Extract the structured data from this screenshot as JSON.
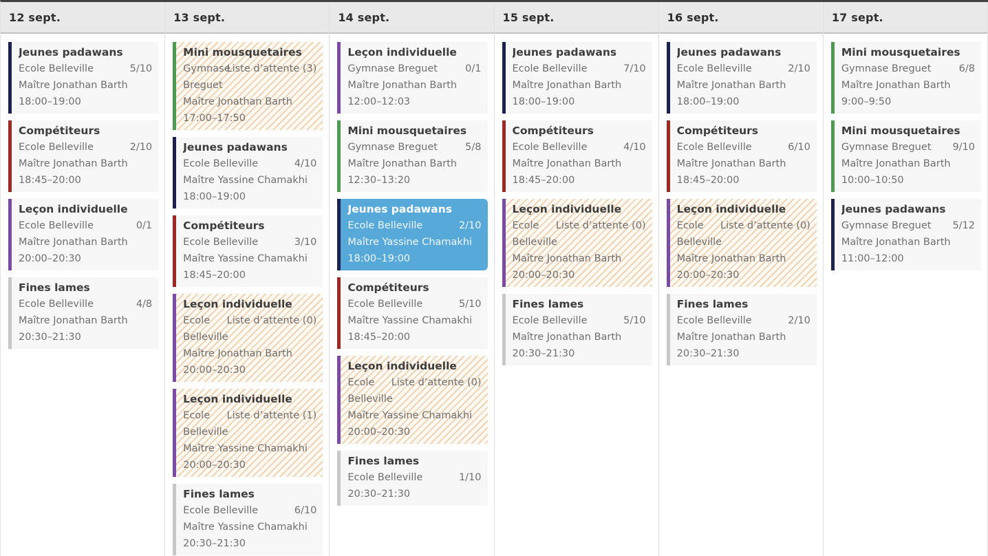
{
  "legend_colors": {
    "jeunes-padawans": "#1d2150",
    "competiteurs": "#9d2a22",
    "lecon-individuelle": "#7a4aa5",
    "mini-mousquetaires": "#4c9b50",
    "fines-lames": "#c7c7c7",
    "selected_event_bg": "#57a9da",
    "waitlist_stripe": "#f1d3b5"
  },
  "calendar": {
    "days": [
      {
        "label": "12 sept.",
        "events": [
          {
            "title": "Jeunes padawans",
            "location": "Ecole Belleville",
            "capacity": "5/10",
            "instructor": "Maître Jonathan Barth",
            "time": "18:00–19:00",
            "category": "jeunes-padawans",
            "waitlist": false,
            "selected": false
          },
          {
            "title": "Compétiteurs",
            "location": "Ecole Belleville",
            "capacity": "2/10",
            "instructor": "Maître Jonathan Barth",
            "time": "18:45–20:00",
            "category": "competiteurs",
            "waitlist": false,
            "selected": false
          },
          {
            "title": "Leçon individuelle",
            "location": "Ecole Belleville",
            "capacity": "0/1",
            "instructor": "Maître Jonathan Barth",
            "time": "20:00–20:30",
            "category": "lecon-individuelle",
            "waitlist": false,
            "selected": false
          },
          {
            "title": "Fines lames",
            "location": "Ecole Belleville",
            "capacity": "4/8",
            "instructor": "Maître Jonathan Barth",
            "time": "20:30–21:30",
            "category": "fines-lames",
            "waitlist": false,
            "selected": false
          }
        ]
      },
      {
        "label": "13 sept.",
        "events": [
          {
            "title": "Mini mousquetaires",
            "location": "Gymnase Breguet",
            "capacity": "Liste d’attente (3)",
            "instructor": "Maître Jonathan Barth",
            "time": "17:00–17:50",
            "category": "mini-mousquetaires",
            "waitlist": true,
            "selected": false
          },
          {
            "title": "Jeunes padawans",
            "location": "Ecole Belleville",
            "capacity": "4/10",
            "instructor": "Maître Yassine Chamakhi",
            "time": "18:00–19:00",
            "category": "jeunes-padawans",
            "waitlist": false,
            "selected": false
          },
          {
            "title": "Compétiteurs",
            "location": "Ecole Belleville",
            "capacity": "3/10",
            "instructor": "Maître Yassine Chamakhi",
            "time": "18:45–20:00",
            "category": "competiteurs",
            "waitlist": false,
            "selected": false
          },
          {
            "title": "Leçon individuelle",
            "location": "Ecole Belleville",
            "capacity": "Liste d’attente (0)",
            "instructor": "Maître Jonathan Barth",
            "time": "20:00–20:30",
            "category": "lecon-individuelle",
            "waitlist": true,
            "selected": false
          },
          {
            "title": "Leçon individuelle",
            "location": "Ecole Belleville",
            "capacity": "Liste d’attente (1)",
            "instructor": "Maître Yassine Chamakhi",
            "time": "20:00–20:30",
            "category": "lecon-individuelle",
            "waitlist": true,
            "selected": false
          },
          {
            "title": "Fines lames",
            "location": "Ecole Belleville",
            "capacity": "6/10",
            "instructor": "Maître Yassine Chamakhi",
            "time": "20:30–21:30",
            "category": "fines-lames",
            "waitlist": false,
            "selected": false
          }
        ]
      },
      {
        "label": "14 sept.",
        "events": [
          {
            "title": "Leçon individuelle",
            "location": "Gymnase Breguet",
            "capacity": "0/1",
            "instructor": "Maître Jonathan Barth",
            "time": "12:00–12:03",
            "category": "lecon-individuelle",
            "waitlist": false,
            "selected": false
          },
          {
            "title": "Mini mousquetaires",
            "location": "Gymnase Breguet",
            "capacity": "5/8",
            "instructor": "Maître Jonathan Barth",
            "time": "12:30–13:20",
            "category": "mini-mousquetaires",
            "waitlist": false,
            "selected": false
          },
          {
            "title": "Jeunes padawans",
            "location": "Ecole Belleville",
            "capacity": "2/10",
            "instructor": "Maître Yassine Chamakhi",
            "time": "18:00–19:00",
            "category": "jeunes-padawans",
            "waitlist": false,
            "selected": true
          },
          {
            "title": "Compétiteurs",
            "location": "Ecole Belleville",
            "capacity": "5/10",
            "instructor": "Maître Yassine Chamakhi",
            "time": "18:45–20:00",
            "category": "competiteurs",
            "waitlist": false,
            "selected": false
          },
          {
            "title": "Leçon individuelle",
            "location": "Ecole Belleville",
            "capacity": "Liste d’attente (0)",
            "instructor": "Maître Yassine Chamakhi",
            "time": "20:00–20:30",
            "category": "lecon-individuelle",
            "waitlist": true,
            "selected": false
          },
          {
            "title": "Fines lames",
            "location": "Ecole Belleville",
            "capacity": "1/10",
            "instructor": null,
            "time": "20:30–21:30",
            "category": "fines-lames",
            "waitlist": false,
            "selected": false
          }
        ]
      },
      {
        "label": "15 sept.",
        "events": [
          {
            "title": "Jeunes padawans",
            "location": "Ecole Belleville",
            "capacity": "7/10",
            "instructor": "Maître Jonathan Barth",
            "time": "18:00–19:00",
            "category": "jeunes-padawans",
            "waitlist": false,
            "selected": false
          },
          {
            "title": "Compétiteurs",
            "location": "Ecole Belleville",
            "capacity": "4/10",
            "instructor": "Maître Jonathan Barth",
            "time": "18:45–20:00",
            "category": "competiteurs",
            "waitlist": false,
            "selected": false
          },
          {
            "title": "Leçon individuelle",
            "location": "Ecole Belleville",
            "capacity": "Liste d’attente (0)",
            "instructor": "Maître Jonathan Barth",
            "time": "20:00–20:30",
            "category": "lecon-individuelle",
            "waitlist": true,
            "selected": false
          },
          {
            "title": "Fines lames",
            "location": "Ecole Belleville",
            "capacity": "5/10",
            "instructor": "Maître Jonathan Barth",
            "time": "20:30–21:30",
            "category": "fines-lames",
            "waitlist": false,
            "selected": false
          }
        ]
      },
      {
        "label": "16 sept.",
        "events": [
          {
            "title": "Jeunes padawans",
            "location": "Ecole Belleville",
            "capacity": "2/10",
            "instructor": "Maître Jonathan Barth",
            "time": "18:00–19:00",
            "category": "jeunes-padawans",
            "waitlist": false,
            "selected": false
          },
          {
            "title": "Compétiteurs",
            "location": "Ecole Belleville",
            "capacity": "6/10",
            "instructor": "Maître Jonathan Barth",
            "time": "18:45–20:00",
            "category": "competiteurs",
            "waitlist": false,
            "selected": false
          },
          {
            "title": "Leçon individuelle",
            "location": "Ecole Belleville",
            "capacity": "Liste d’attente (0)",
            "instructor": "Maître Jonathan Barth",
            "time": "20:00–20:30",
            "category": "lecon-individuelle",
            "waitlist": true,
            "selected": false
          },
          {
            "title": "Fines lames",
            "location": "Ecole Belleville",
            "capacity": "2/10",
            "instructor": "Maître Jonathan Barth",
            "time": "20:30–21:30",
            "category": "fines-lames",
            "waitlist": false,
            "selected": false
          }
        ]
      },
      {
        "label": "17 sept.",
        "events": [
          {
            "title": "Mini mousquetaires",
            "location": "Gymnase Breguet",
            "capacity": "6/8",
            "instructor": "Maître Jonathan Barth",
            "time": "9:00–9:50",
            "category": "mini-mousquetaires",
            "waitlist": false,
            "selected": false
          },
          {
            "title": "Mini mousquetaires",
            "location": "Gymnase Breguet",
            "capacity": "9/10",
            "instructor": "Maître Jonathan Barth",
            "time": "10:00–10:50",
            "category": "mini-mousquetaires",
            "waitlist": false,
            "selected": false
          },
          {
            "title": "Jeunes padawans",
            "location": "Gymnase Breguet",
            "capacity": "5/12",
            "instructor": "Maître Jonathan Barth",
            "time": "11:00–12:00",
            "category": "jeunes-padawans",
            "waitlist": false,
            "selected": false
          }
        ]
      }
    ]
  }
}
